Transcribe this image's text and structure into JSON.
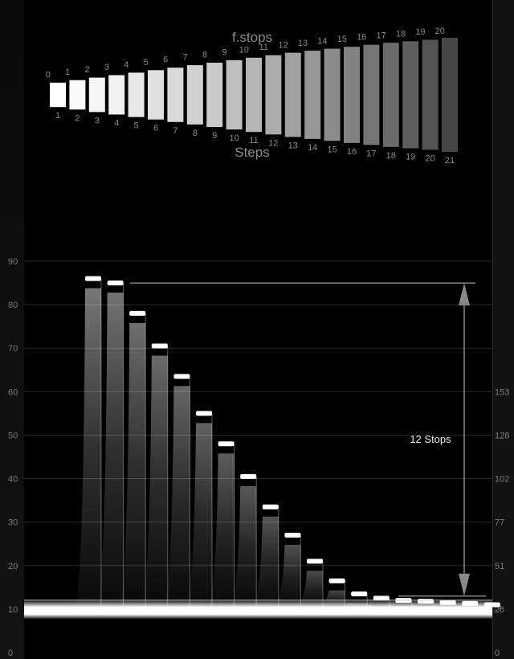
{
  "chart_data": [
    {
      "type": "bar",
      "title": "f.stops",
      "xlabel": "Steps",
      "stop_labels": [
        "0",
        "1",
        "2",
        "3",
        "4",
        "5",
        "6",
        "7",
        "8",
        "9",
        "10",
        "11",
        "12",
        "13",
        "14",
        "15",
        "16",
        "17",
        "18",
        "19",
        "20"
      ],
      "step_labels": [
        "1",
        "2",
        "3",
        "4",
        "5",
        "6",
        "7",
        "8",
        "9",
        "10",
        "11",
        "12",
        "13",
        "14",
        "15",
        "16",
        "17",
        "18",
        "19",
        "20",
        "21"
      ],
      "patch_brightness": [
        1.0,
        0.98,
        0.96,
        0.94,
        0.91,
        0.88,
        0.85,
        0.82,
        0.79,
        0.75,
        0.71,
        0.67,
        0.63,
        0.59,
        0.55,
        0.51,
        0.46,
        0.42,
        0.37,
        0.33,
        0.28
      ],
      "patch_size": [
        0.1,
        0.15,
        0.2,
        0.25,
        0.3,
        0.35,
        0.4,
        0.45,
        0.5,
        0.55,
        0.6,
        0.65,
        0.7,
        0.74,
        0.78,
        0.82,
        0.86,
        0.9,
        0.93,
        0.96,
        1.0
      ],
      "colors": {
        "text": "#8a8a8a",
        "background": "#000000"
      }
    },
    {
      "type": "area",
      "xlabel": "",
      "ylabel": "",
      "ylim": [
        0,
        90
      ],
      "yticks_left": [
        "0",
        "10",
        "20",
        "30",
        "40",
        "50",
        "60",
        "70",
        "80",
        "90"
      ],
      "yticks_right": [
        "0",
        "26",
        "51",
        "77",
        "102",
        "128",
        "153"
      ],
      "yticks_right_values": [
        0,
        10,
        20,
        30,
        40,
        50,
        60
      ],
      "grid": true,
      "steps": [
        1,
        2,
        3,
        4,
        5,
        6,
        7,
        8,
        9,
        10,
        11,
        12,
        13,
        14,
        15,
        16,
        17,
        18,
        19
      ],
      "values": [
        86,
        85,
        78,
        70.5,
        63.5,
        55,
        48,
        40.5,
        33.5,
        27,
        21,
        16.5,
        13.5,
        12.5,
        12,
        11.8,
        11.5,
        11.3,
        11
      ],
      "noise_floor": 10,
      "annotation": {
        "text": "12 Stops",
        "from": 85,
        "to": 13
      },
      "colors": {
        "trace": "#ffffff",
        "grid": "#2a2a2a",
        "annotation": "#c8c8c8",
        "tick": "#7a7a7a"
      }
    }
  ]
}
